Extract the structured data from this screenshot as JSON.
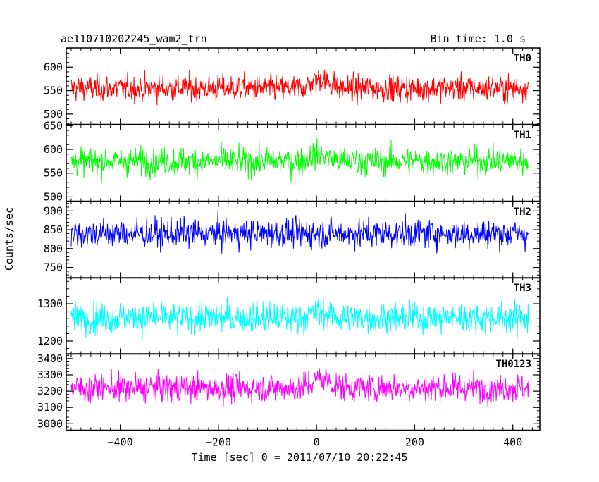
{
  "chart_data": {
    "type": "line",
    "title_left": "ae110710202245_wam2_trn",
    "title_right": "Bin time: 1.0 s",
    "xlabel": "Time [sec] 0 = 2011/07/10 20:22:45",
    "ylabel": "Counts/sec",
    "xlim": [
      -510,
      455
    ],
    "x_ticks": [
      -400,
      -200,
      0,
      200,
      400
    ],
    "x_tick_labels": [
      "−400",
      "−200",
      "0",
      "200",
      "400"
    ],
    "x_range_data": [
      -500,
      432
    ],
    "grid": false,
    "panels": [
      {
        "name": "TH0",
        "color": "#ff0000",
        "ylim": [
          478,
          641
        ],
        "y_ticks": [
          500,
          550,
          600
        ],
        "y_tick_labels": [
          "500",
          "550",
          "600"
        ],
        "mean": 555,
        "spread": 22,
        "bursts": [
          {
            "x": 10,
            "amp": 20
          }
        ]
      },
      {
        "name": "TH1",
        "color": "#00ff00",
        "ylim": [
          491,
          652
        ],
        "y_ticks": [
          500,
          550,
          600,
          650
        ],
        "y_tick_labels": [
          "500",
          "550",
          "600",
          "650"
        ],
        "mean": 575,
        "spread": 23,
        "bursts": [
          {
            "x": 5,
            "amp": 15
          }
        ]
      },
      {
        "name": "TH2",
        "color": "#0000ff",
        "ylim": [
          722,
          925
        ],
        "y_ticks": [
          750,
          800,
          850,
          900
        ],
        "y_tick_labels": [
          "750",
          "800",
          "850",
          "900"
        ],
        "mean": 840,
        "spread": 30,
        "bursts": []
      },
      {
        "name": "TH3",
        "color": "#00ffff",
        "ylim": [
          1165,
          1370
        ],
        "y_ticks": [
          1200,
          1300
        ],
        "y_tick_labels": [
          "1200",
          "1300"
        ],
        "mean": 1262,
        "spread": 32,
        "bursts": [
          {
            "x": 5,
            "amp": 15
          }
        ]
      },
      {
        "name": "TH0123",
        "color": "#ff00ff",
        "ylim": [
          2960,
          3430
        ],
        "y_ticks": [
          3000,
          3100,
          3200,
          3300,
          3400
        ],
        "y_tick_labels": [
          "3000",
          "3100",
          "3200",
          "3300",
          "3400"
        ],
        "mean": 3220,
        "spread": 68,
        "bursts": [
          {
            "x": 10,
            "amp": 60
          }
        ]
      }
    ]
  }
}
